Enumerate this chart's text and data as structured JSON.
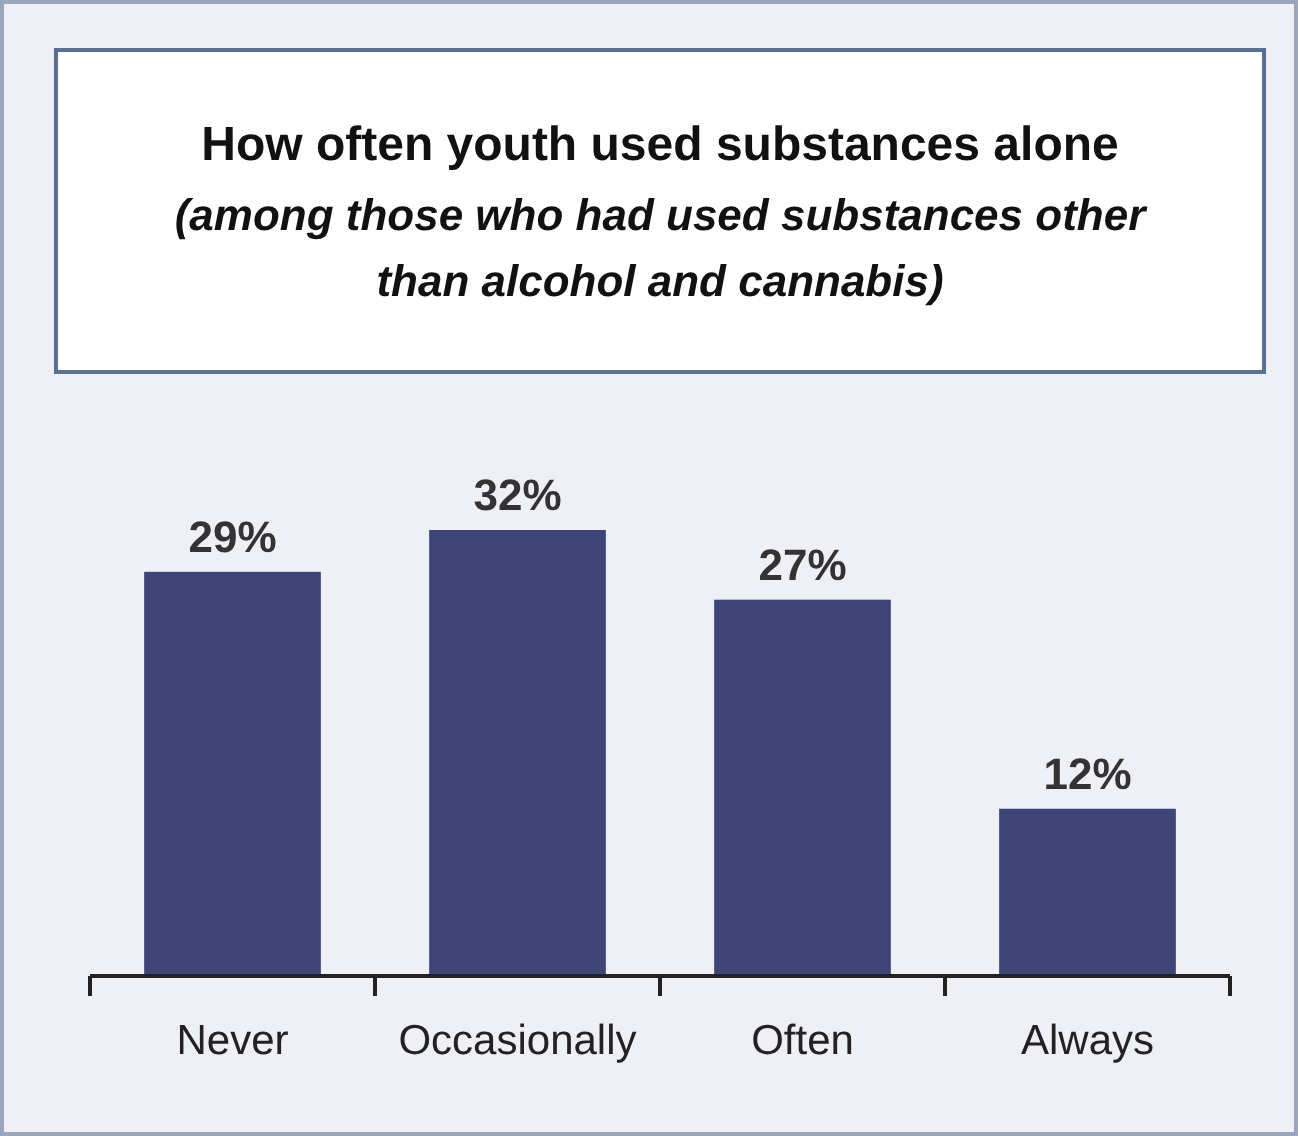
{
  "chart_data": {
    "type": "bar",
    "title": "How often youth used substances alone",
    "subtitle": "(among those who had used substances other than alcohol and cannabis)",
    "categories": [
      "Never",
      "Occasionally",
      "Often",
      "Always"
    ],
    "values": [
      29,
      32,
      27,
      12
    ],
    "value_labels": [
      "29%",
      "32%",
      "27%",
      "12%"
    ],
    "color": "#3d4577",
    "grid": false
  }
}
